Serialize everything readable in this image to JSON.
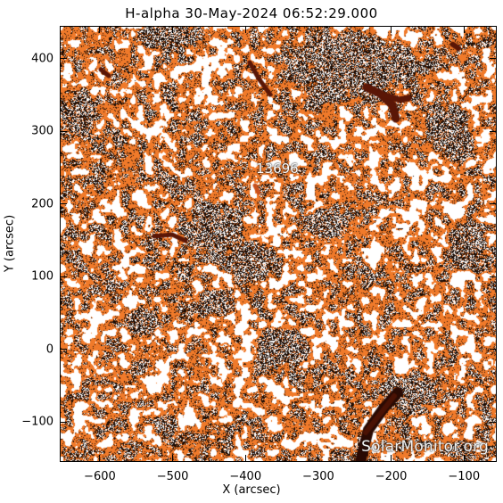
{
  "title": "H-alpha 30-May-2024 06:52:29.000",
  "region_label": "13696",
  "watermark": "SolarMonitor.org",
  "axes": {
    "xlabel": "X (arcsec)",
    "ylabel": "Y (arcsec)",
    "xlim": [
      -655,
      -55
    ],
    "ylim": [
      -155,
      445
    ],
    "xticks": [
      -600,
      -500,
      -400,
      -300,
      -200,
      -100
    ],
    "xtick_labels": [
      "−600",
      "−500",
      "−400",
      "−300",
      "−200",
      "−100"
    ],
    "yticks": [
      -100,
      0,
      100,
      200,
      300,
      400
    ],
    "ytick_labels": [
      "−100",
      "0",
      "100",
      "200",
      "300",
      "400"
    ]
  },
  "colors": {
    "plage": "#f07a2a",
    "bright_plage": "#ff9c50",
    "dark_mottle": "#1c0d04",
    "filament": "#5a1606",
    "background": "#ffffff"
  }
}
